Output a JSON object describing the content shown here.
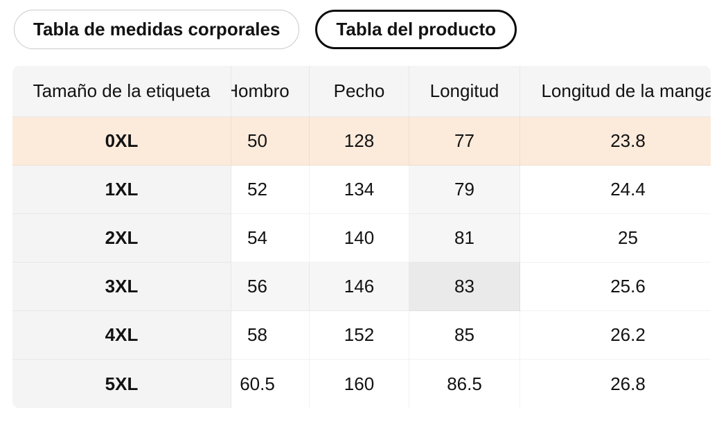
{
  "tabs": [
    {
      "label": "Tabla de medidas corporales",
      "active": false
    },
    {
      "label": "Tabla del producto",
      "active": true
    }
  ],
  "table": {
    "sticky_header": "Tamaño de la etiqueta",
    "scroll_columns": [
      "Hombro",
      "Pecho",
      "Longitud",
      "Longitud de la manga"
    ],
    "rows": [
      {
        "label": "0XL",
        "values": [
          "50",
          "128",
          "77",
          "23.8"
        ]
      },
      {
        "label": "1XL",
        "values": [
          "52",
          "134",
          "79",
          "24.4"
        ]
      },
      {
        "label": "2XL",
        "values": [
          "54",
          "140",
          "81",
          "25"
        ]
      },
      {
        "label": "3XL",
        "values": [
          "56",
          "146",
          "83",
          "25.6"
        ]
      },
      {
        "label": "4XL",
        "values": [
          "58",
          "152",
          "85",
          "26.2"
        ]
      },
      {
        "label": "5XL",
        "values": [
          "60.5",
          "160",
          "86.5",
          "26.8"
        ]
      }
    ],
    "selected_row_index": 0,
    "hovered_cell": {
      "row_index": 3,
      "col_index": 2,
      "row_label": "3XL",
      "column": "Longitud"
    }
  },
  "colors": {
    "selected_row_bg": "#fceadb",
    "hover_trace_bg": "#f6f6f6",
    "hover_cell_bg": "#eaeaea",
    "header_bg": "#f5f5f6",
    "sticky_col_bg": "#f4f4f5",
    "active_tab_border": "#0a0a0a",
    "inactive_tab_border": "#c9c9c9"
  }
}
